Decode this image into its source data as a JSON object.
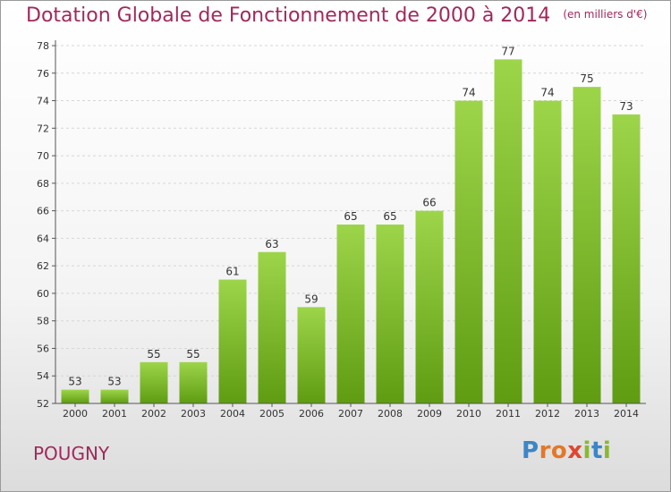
{
  "header": {
    "title": "Dotation Globale de Fonctionnement de 2000 à 2014",
    "unit": "(en milliers d'€)"
  },
  "footer": {
    "commune": "POUGNY",
    "logo": "Proxiti"
  },
  "colors": {
    "title": "#a0295b",
    "bar_top": "#9dd54a",
    "bar_bottom": "#5f9c12"
  },
  "chart_data": {
    "type": "bar",
    "title": "Dotation Globale de Fonctionnement de 2000 à 2014",
    "subtitle": "(en milliers d'€)",
    "categories": [
      "2000",
      "2001",
      "2002",
      "2003",
      "2004",
      "2005",
      "2006",
      "2007",
      "2008",
      "2009",
      "2010",
      "2011",
      "2012",
      "2013",
      "2014"
    ],
    "values": [
      53,
      53,
      55,
      55,
      61,
      63,
      59,
      65,
      65,
      66,
      74,
      77,
      74,
      75,
      73
    ],
    "ylim": [
      52,
      78
    ],
    "yticks": [
      52,
      54,
      56,
      58,
      60,
      62,
      64,
      66,
      68,
      70,
      72,
      74,
      76,
      78
    ],
    "grid": true,
    "legend": "none"
  }
}
